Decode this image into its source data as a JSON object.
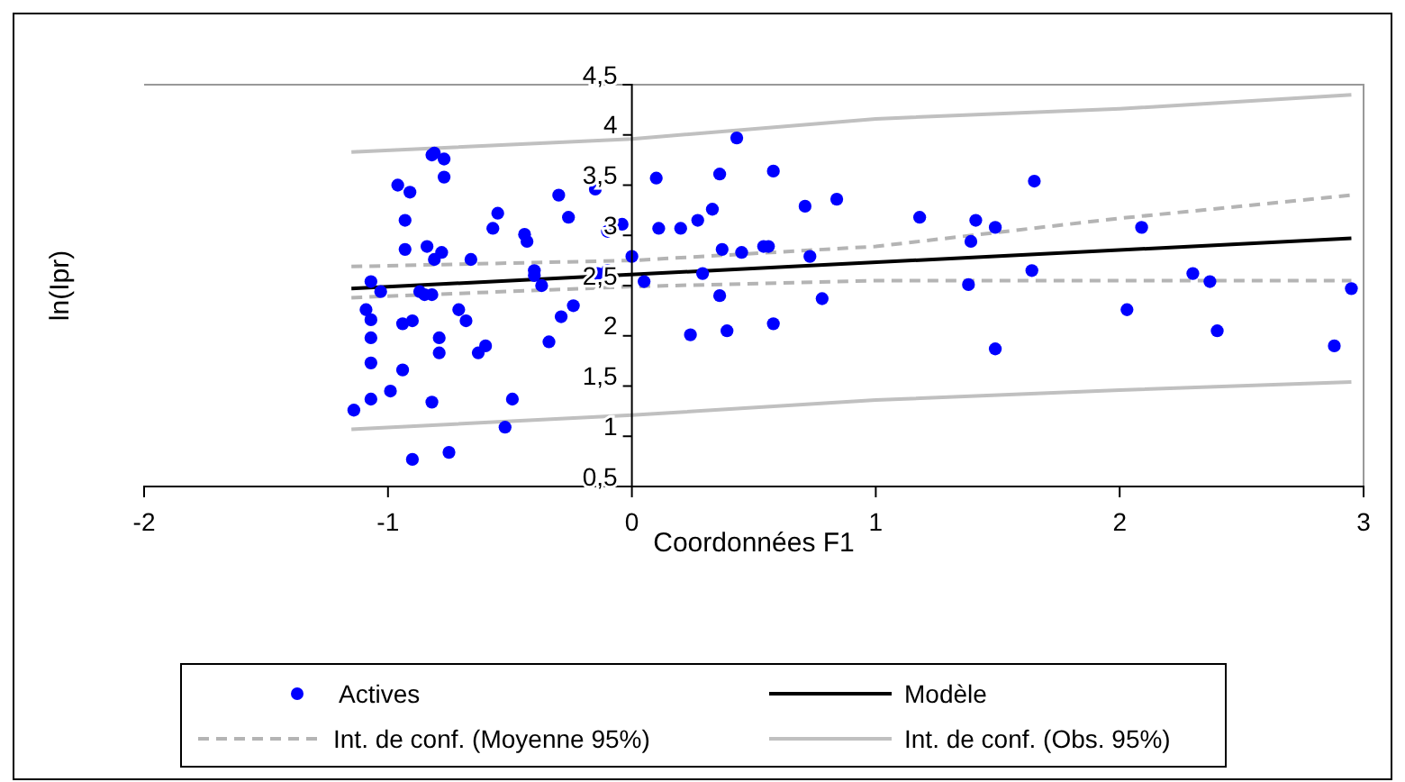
{
  "chart_data": {
    "type": "scatter",
    "xlabel": "Coordonnées F1",
    "ylabel": "ln(Ipr)",
    "xlim": [
      -2,
      3
    ],
    "xticks": [
      -2,
      -1,
      0,
      1,
      2,
      3
    ],
    "ylim": [
      0.5,
      4.5
    ],
    "yticks": [
      {
        "value": 0.5,
        "label": "0,5"
      },
      1,
      {
        "value": 1.5,
        "label": "1,5"
      },
      2,
      {
        "value": 2.5,
        "label": "2,5"
      },
      3,
      {
        "value": 3.5,
        "label": "3,5"
      },
      4,
      {
        "value": 4.5,
        "label": "4,5"
      }
    ],
    "grid": false,
    "legend": "bottom",
    "series": [
      {
        "name": "Actives",
        "color": "#0000ff",
        "marker": "circle",
        "x": [
          -1.14,
          -1.07,
          -1.03,
          -1.09,
          -1.07,
          -1.07,
          -1.07,
          -1.07,
          -0.99,
          -0.94,
          -0.94,
          -0.9,
          -0.96,
          -0.91,
          -0.93,
          -0.93,
          -0.84,
          -0.87,
          -0.85,
          -0.82,
          -0.82,
          -0.81,
          -0.77,
          -0.77,
          -0.81,
          -0.78,
          -0.79,
          -0.79,
          -0.82,
          -0.9,
          -0.75,
          -0.71,
          -0.68,
          -0.66,
          -0.63,
          -0.6,
          -0.57,
          -0.55,
          -0.44,
          -0.43,
          -0.4,
          -0.4,
          -0.37,
          -0.52,
          -0.49,
          -0.34,
          -0.3,
          -0.26,
          -0.29,
          -0.24,
          -0.15,
          -0.1,
          -0.04,
          -0.14,
          -0.1,
          0.0,
          0.05,
          0.1,
          0.11,
          0.2,
          0.27,
          0.33,
          0.36,
          0.43,
          0.29,
          0.37,
          0.45,
          0.54,
          0.56,
          0.58,
          0.36,
          0.24,
          0.39,
          0.58,
          0.71,
          0.84,
          0.73,
          0.78,
          1.18,
          1.41,
          1.49,
          1.39,
          1.38,
          1.49,
          1.65,
          1.64,
          2.09,
          2.03,
          2.3,
          2.37,
          2.4,
          2.88,
          2.95
        ],
        "values": [
          1.26,
          2.54,
          2.44,
          2.26,
          2.16,
          1.98,
          1.73,
          1.37,
          1.45,
          1.66,
          2.12,
          2.15,
          3.5,
          3.43,
          3.15,
          2.86,
          2.89,
          2.44,
          2.41,
          2.41,
          3.8,
          3.82,
          3.76,
          3.58,
          2.76,
          2.83,
          1.98,
          1.83,
          1.34,
          0.77,
          0.84,
          2.26,
          2.15,
          2.76,
          1.83,
          1.9,
          3.07,
          3.22,
          3.01,
          2.94,
          2.65,
          2.6,
          2.5,
          1.09,
          1.37,
          1.94,
          3.4,
          3.18,
          2.19,
          2.3,
          3.46,
          3.04,
          3.11,
          2.62,
          2.65,
          2.79,
          2.54,
          3.57,
          3.07,
          3.07,
          3.15,
          3.26,
          3.61,
          3.97,
          2.62,
          2.86,
          2.83,
          2.89,
          2.89,
          3.64,
          2.4,
          2.01,
          2.05,
          2.12,
          3.29,
          3.36,
          2.79,
          2.37,
          3.18,
          3.15,
          3.08,
          2.94,
          2.51,
          1.87,
          3.54,
          2.65,
          3.08,
          2.26,
          2.62,
          2.54,
          2.05,
          1.9,
          2.47
        ]
      },
      {
        "name": "Modèle",
        "type": "line",
        "color": "#000000",
        "line_style": "solid",
        "x": [
          -1.15,
          2.95
        ],
        "values": [
          2.47,
          2.97
        ]
      },
      {
        "name": "Int. de conf. (Moyenne 95%)",
        "type": "line",
        "color": "#b4b4b4",
        "line_style": "dashed",
        "x": [
          -1.15,
          0,
          1,
          2,
          2.95
        ],
        "values": [
          2.69,
          2.75,
          2.89,
          3.17,
          3.4
        ]
      },
      {
        "type": "line",
        "color": "#b4b4b4",
        "line_style": "dashed",
        "x": [
          -1.15,
          0,
          1,
          2,
          2.95
        ],
        "values": [
          2.38,
          2.49,
          2.55,
          2.55,
          2.55
        ]
      },
      {
        "name": "Int. de conf. (Obs. 95%)",
        "type": "line",
        "color": "#c0c0c0",
        "line_style": "solid",
        "x": [
          -1.15,
          0,
          1,
          2,
          2.95
        ],
        "values": [
          3.83,
          3.96,
          4.16,
          4.26,
          4.4
        ]
      },
      {
        "type": "line",
        "color": "#c0c0c0",
        "line_style": "solid",
        "x": [
          -1.15,
          0,
          1,
          2,
          2.95
        ],
        "values": [
          1.07,
          1.21,
          1.36,
          1.46,
          1.54
        ]
      }
    ]
  }
}
